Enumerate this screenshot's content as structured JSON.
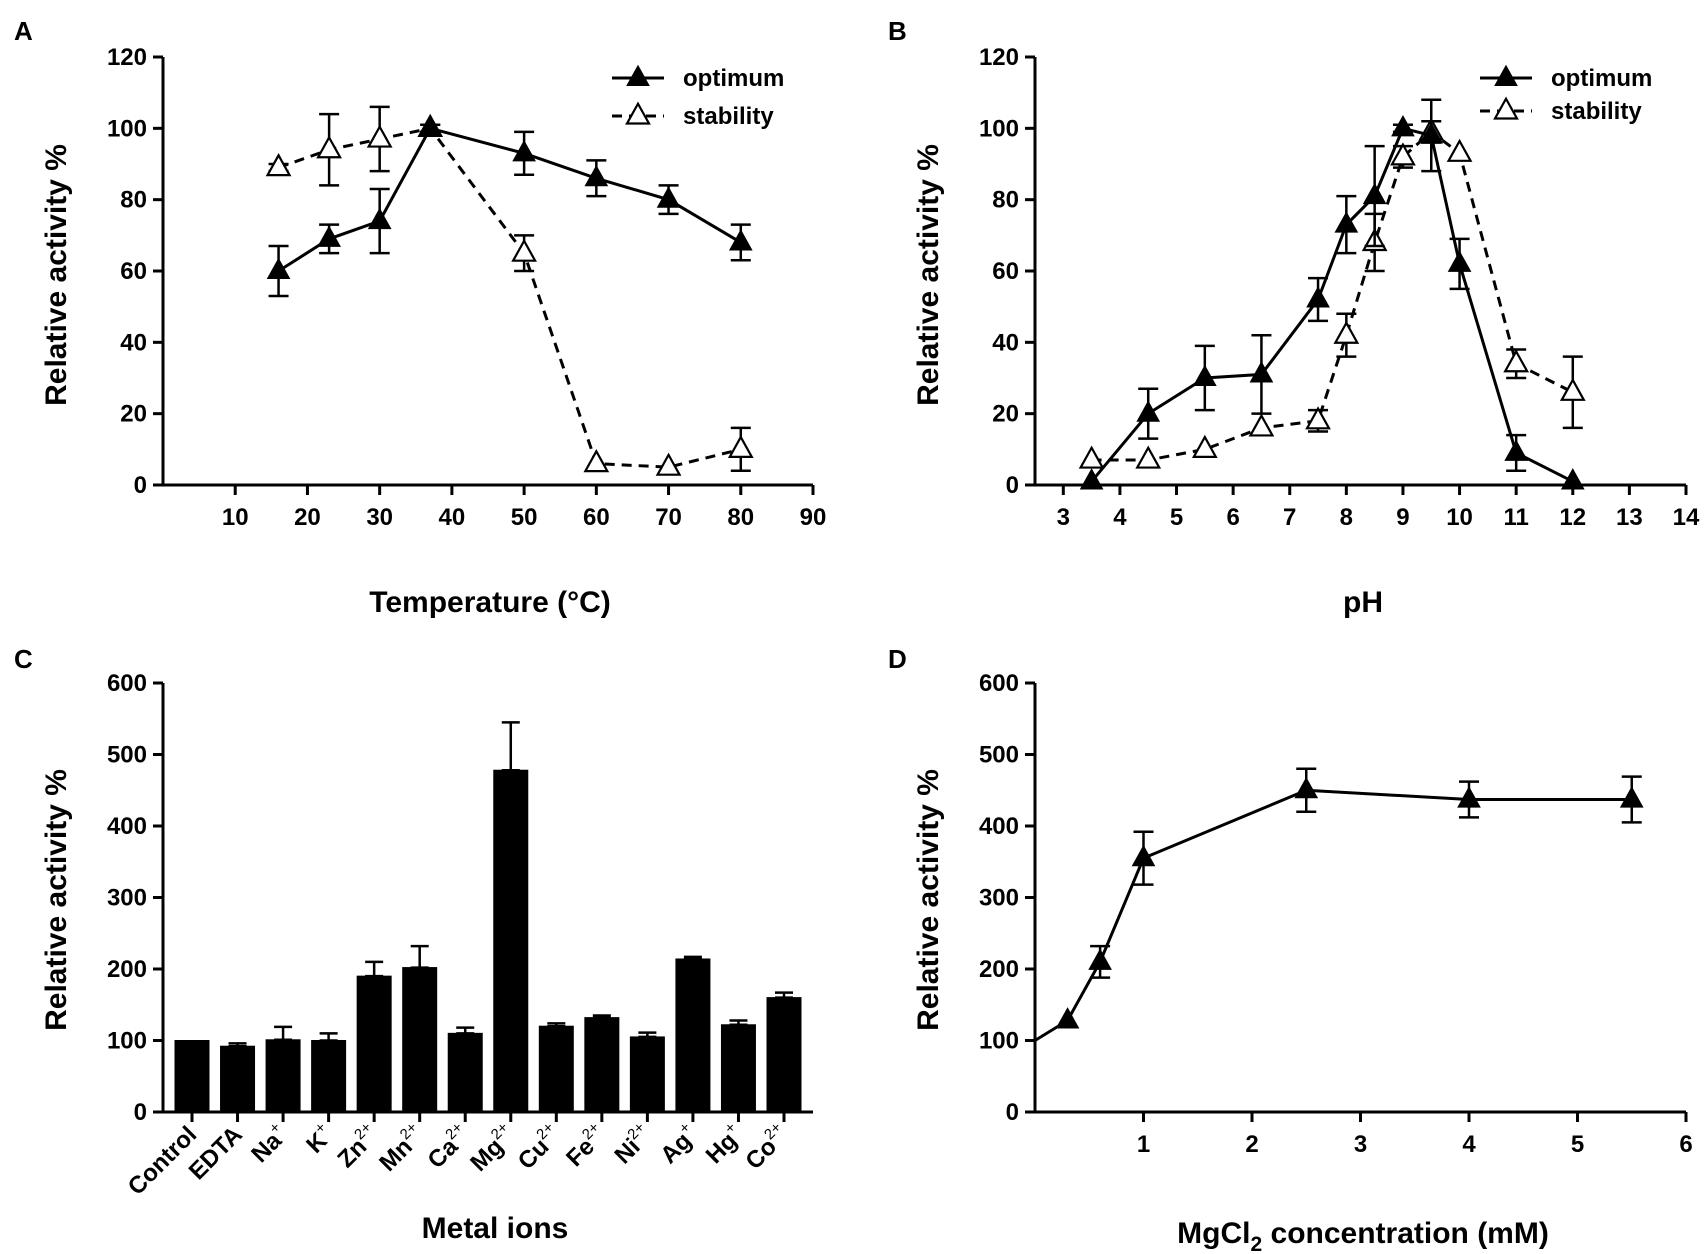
{
  "chart_data": [
    {
      "panel": "A",
      "type": "line",
      "xlabel": "Temperature (°C)",
      "ylabel": "Relative activity %",
      "xlim": [
        0,
        90
      ],
      "ylim": [
        0,
        120
      ],
      "xticks": [
        10,
        20,
        30,
        40,
        50,
        60,
        70,
        80,
        90
      ],
      "yticks": [
        0,
        20,
        40,
        60,
        80,
        100,
        120
      ],
      "legend": [
        "optimum",
        "stability"
      ],
      "series": [
        {
          "name": "optimum",
          "marker": "filled-triangle",
          "line": "solid",
          "x": [
            16,
            23,
            30,
            37,
            50,
            60,
            70,
            80
          ],
          "y": [
            60,
            69,
            74,
            100,
            93,
            86,
            80,
            68
          ],
          "err": [
            7,
            4,
            9,
            1,
            6,
            5,
            4,
            5
          ]
        },
        {
          "name": "stability",
          "marker": "open-triangle",
          "line": "dashed",
          "x": [
            16,
            23,
            30,
            37,
            50,
            60,
            70,
            80
          ],
          "y": [
            89,
            94,
            97,
            100,
            65,
            6,
            5,
            10
          ],
          "err": [
            1,
            10,
            9,
            1,
            5,
            0,
            0,
            6
          ]
        }
      ]
    },
    {
      "panel": "B",
      "type": "line",
      "xlabel": "pH",
      "ylabel": "Relative activity %",
      "xlim": [
        2.5,
        14
      ],
      "ylim": [
        0,
        120
      ],
      "xticks": [
        3,
        4,
        5,
        6,
        7,
        8,
        9,
        10,
        11,
        12,
        13,
        14
      ],
      "yticks": [
        0,
        20,
        40,
        60,
        80,
        100,
        120
      ],
      "legend": [
        "optimum",
        "stability"
      ],
      "series": [
        {
          "name": "optimum",
          "marker": "filled-triangle",
          "line": "solid",
          "x": [
            3.5,
            4.5,
            5.5,
            6.5,
            7.5,
            8,
            8.5,
            9,
            9.5,
            10,
            11,
            12
          ],
          "y": [
            1,
            20,
            30,
            31,
            52,
            73,
            81,
            100,
            98,
            62,
            9,
            1
          ],
          "err": [
            0,
            7,
            9,
            11,
            6,
            8,
            14,
            1,
            10,
            7,
            5,
            0
          ]
        },
        {
          "name": "stability",
          "marker": "open-triangle",
          "line": "dashed",
          "x": [
            3.5,
            4.5,
            5.5,
            6.5,
            7.5,
            8,
            8.5,
            9,
            9.5,
            10,
            11,
            12
          ],
          "y": [
            7,
            7,
            10,
            16,
            18,
            42,
            68,
            92,
            99,
            93,
            34,
            26
          ],
          "err": [
            0,
            0,
            0,
            0,
            3,
            6,
            8,
            3,
            3,
            0,
            4,
            10
          ]
        }
      ]
    },
    {
      "panel": "C",
      "type": "bar",
      "xlabel": "Metal ions",
      "ylabel": "Relative activity %",
      "ylim": [
        0,
        600
      ],
      "yticks": [
        0,
        100,
        200,
        300,
        400,
        500,
        600
      ],
      "categories": [
        {
          "base": "Control",
          "sup": ""
        },
        {
          "base": "EDTA",
          "sup": ""
        },
        {
          "base": "Na",
          "sup": "+"
        },
        {
          "base": "K",
          "sup": "+"
        },
        {
          "base": "Zn",
          "sup": "2+"
        },
        {
          "base": "Mn",
          "sup": "2+"
        },
        {
          "base": "Ca",
          "sup": "2+"
        },
        {
          "base": "Mg",
          "sup": "2+"
        },
        {
          "base": "Cu",
          "sup": "2+"
        },
        {
          "base": "Fe",
          "sup": "2+"
        },
        {
          "base": "Ni",
          "sup": "2+"
        },
        {
          "base": "Ag",
          "sup": "+"
        },
        {
          "base": "Hg",
          "sup": "+"
        },
        {
          "base": "Co",
          "sup": "2+"
        }
      ],
      "values": [
        100,
        92,
        101,
        100,
        190,
        202,
        110,
        478,
        120,
        132,
        105,
        214,
        122,
        160
      ],
      "err": [
        0,
        4,
        18,
        10,
        20,
        30,
        8,
        67,
        4,
        3,
        6,
        3,
        6,
        7
      ]
    },
    {
      "panel": "D",
      "type": "line",
      "xlabel_base": "MgCl",
      "xlabel_sub": "2",
      "xlabel_rest": " concentration (mM)",
      "ylabel": "Relative activity %",
      "xlim": [
        0,
        6
      ],
      "ylim": [
        0,
        600
      ],
      "xticks": [
        1,
        2,
        3,
        4,
        5,
        6
      ],
      "yticks": [
        0,
        100,
        200,
        300,
        400,
        500,
        600
      ],
      "series": [
        {
          "name": "activity",
          "marker": "filled-triangle",
          "line": "solid",
          "x": [
            0.3,
            0.6,
            1,
            2.5,
            4,
            5.5
          ],
          "y": [
            128,
            210,
            355,
            450,
            437,
            437
          ],
          "err": [
            0,
            22,
            37,
            30,
            25,
            32
          ],
          "line_start": {
            "x": 0,
            "y": 100
          }
        }
      ]
    }
  ]
}
